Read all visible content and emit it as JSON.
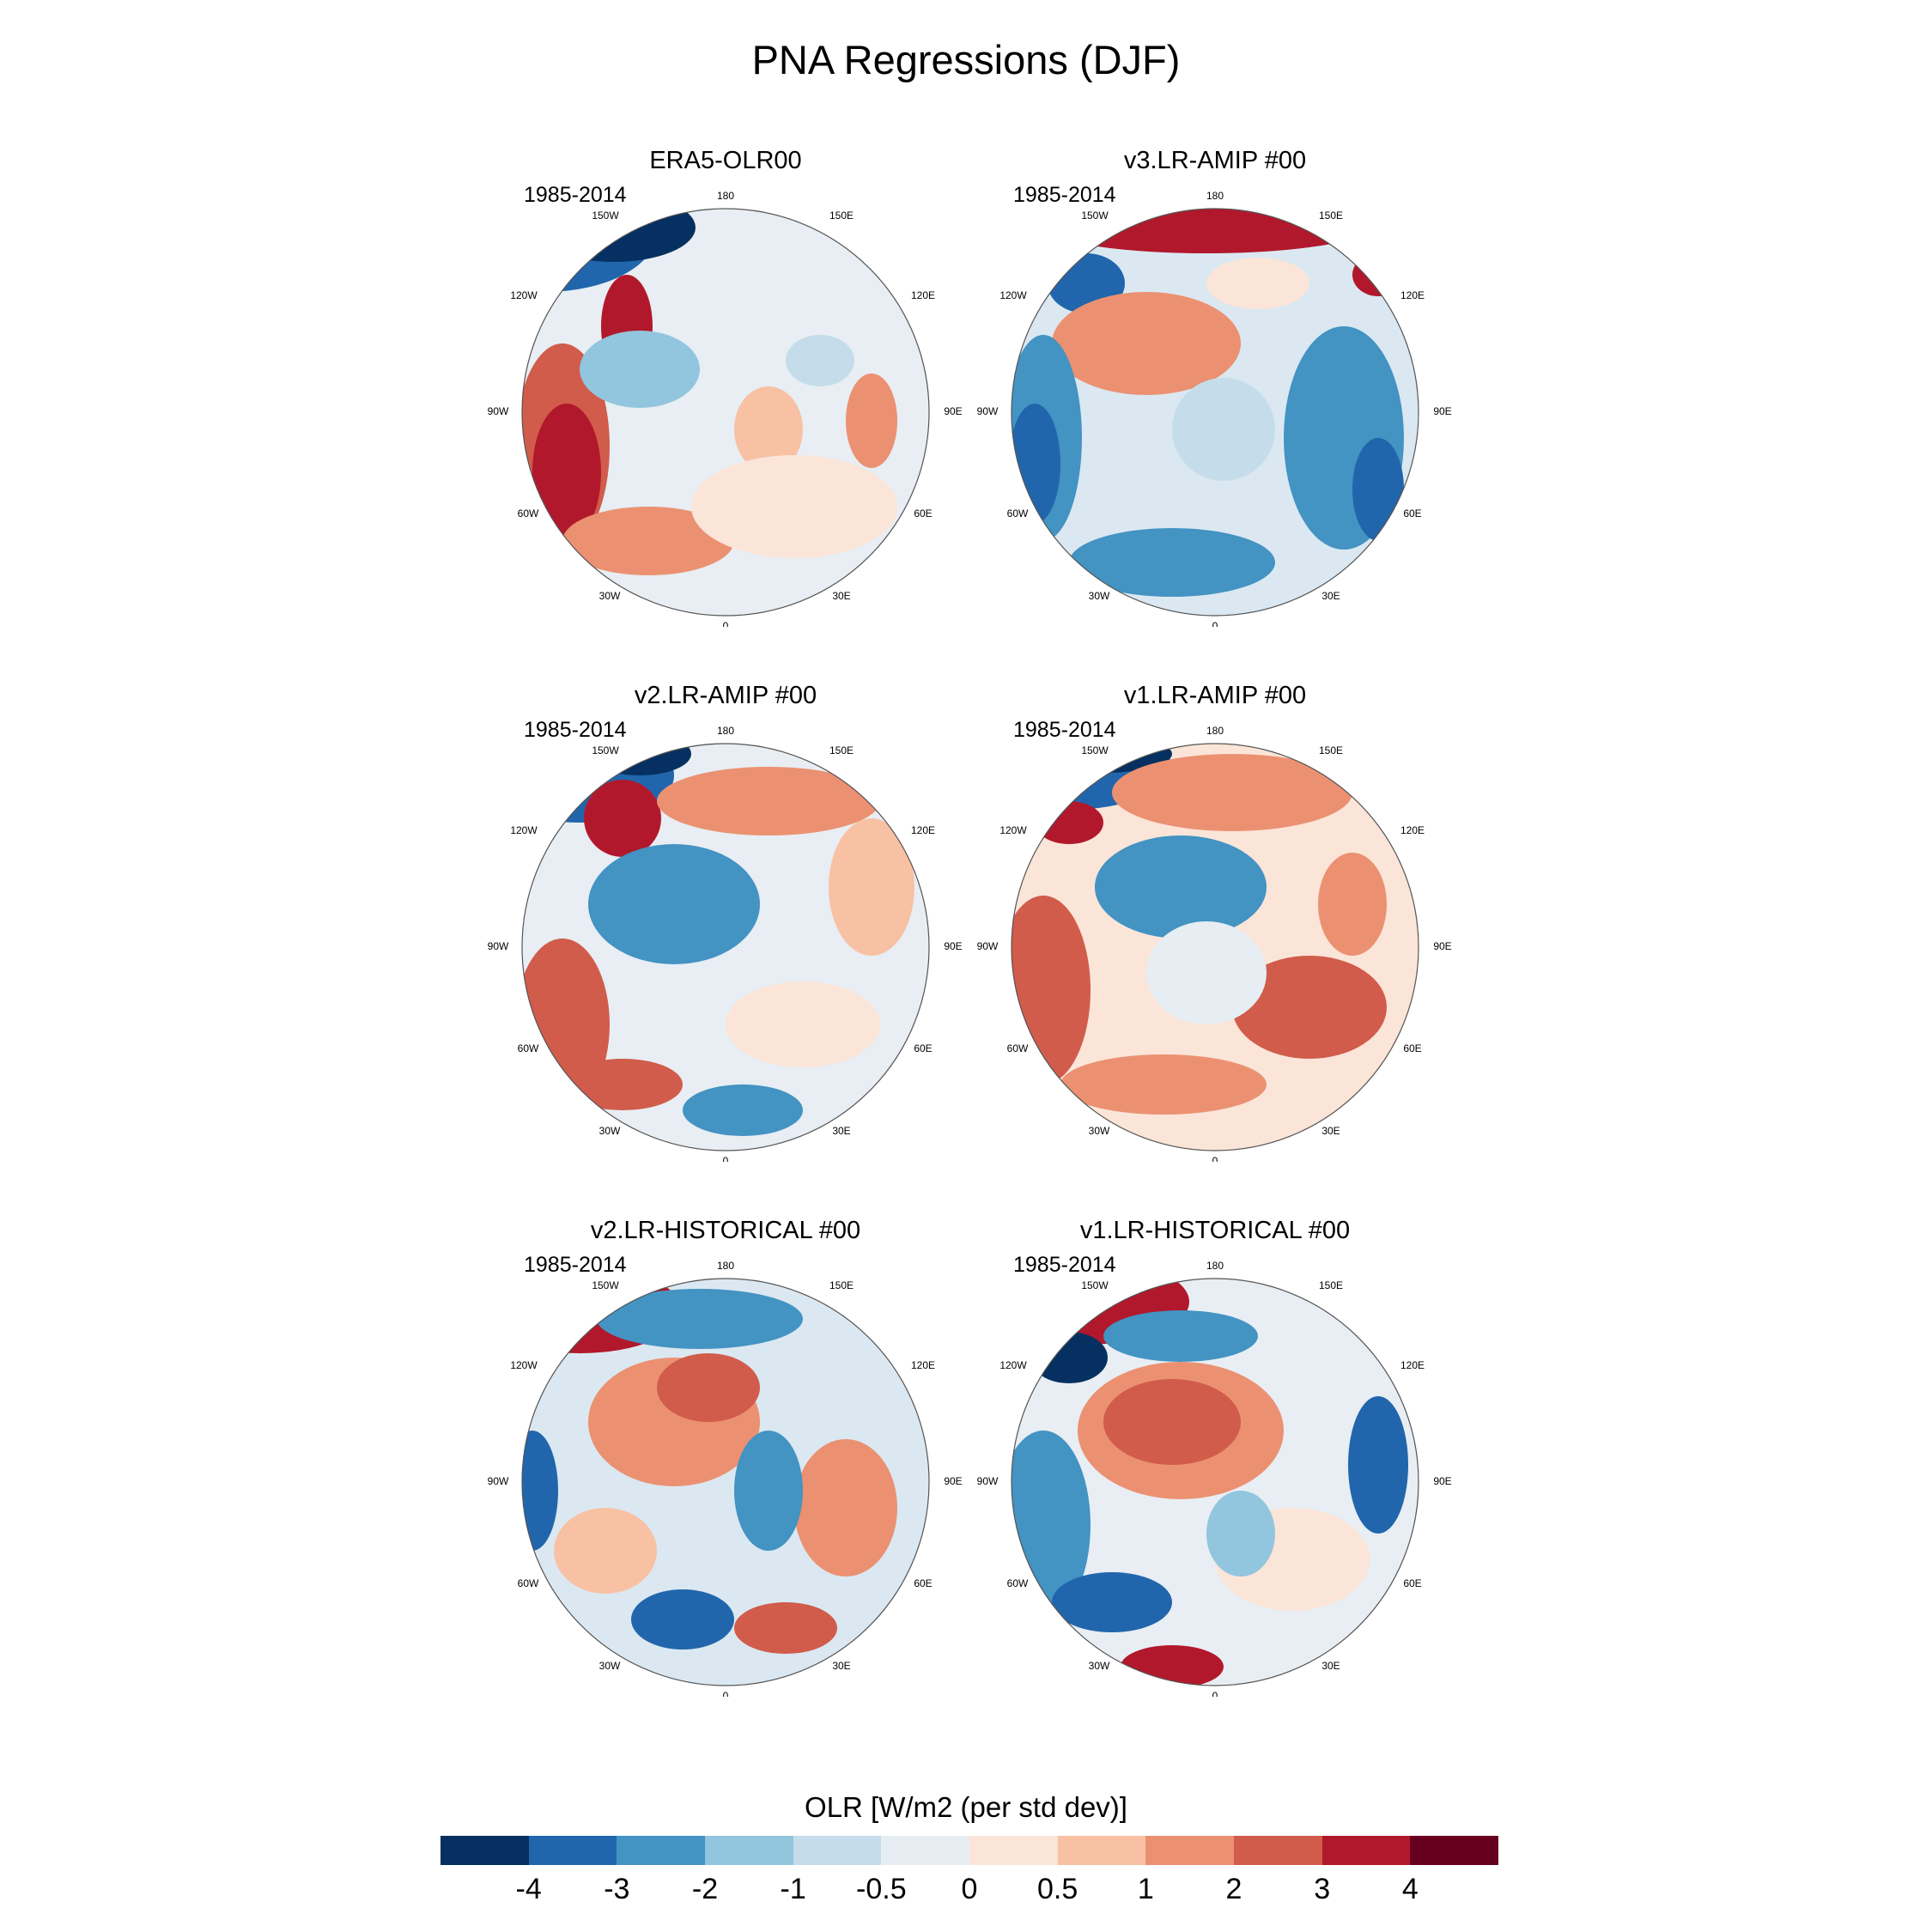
{
  "title": "PNA Regressions (DJF)",
  "panels": [
    {
      "id": "era5",
      "title": "ERA5-OLR00",
      "period": "1985-2014"
    },
    {
      "id": "v3amip",
      "title": "v3.LR-AMIP  #00",
      "period": "1985-2014"
    },
    {
      "id": "v2amip",
      "title": "v2.LR-AMIP  #00",
      "period": "1985-2014"
    },
    {
      "id": "v1amip",
      "title": "v1.LR-AMIP  #00",
      "period": "1985-2014"
    },
    {
      "id": "v2hist",
      "title": "v2.LR-HISTORICAL  #00",
      "period": "1985-2014"
    },
    {
      "id": "v1hist",
      "title": "v1.LR-HISTORICAL  #00",
      "period": "1985-2014"
    }
  ],
  "longitude_labels": [
    "180",
    "150E",
    "120E",
    "90E",
    "60E",
    "30E",
    "0",
    "30W",
    "60W",
    "90W",
    "120W",
    "150W"
  ],
  "colorbar": {
    "title": "OLR [W/m2 (per std dev)]",
    "tick_labels": [
      "-4",
      "-3",
      "-2",
      "-1",
      "-0.5",
      "0",
      "0.5",
      "1",
      "2",
      "3",
      "4"
    ],
    "colors": [
      "#053061",
      "#2166ac",
      "#4393c3",
      "#92c5de",
      "#c5ddeb",
      "#e6eef3",
      "#fbe5d8",
      "#f8c1a4",
      "#eb9172",
      "#d15c4b",
      "#b2182b",
      "#67001f"
    ]
  }
}
